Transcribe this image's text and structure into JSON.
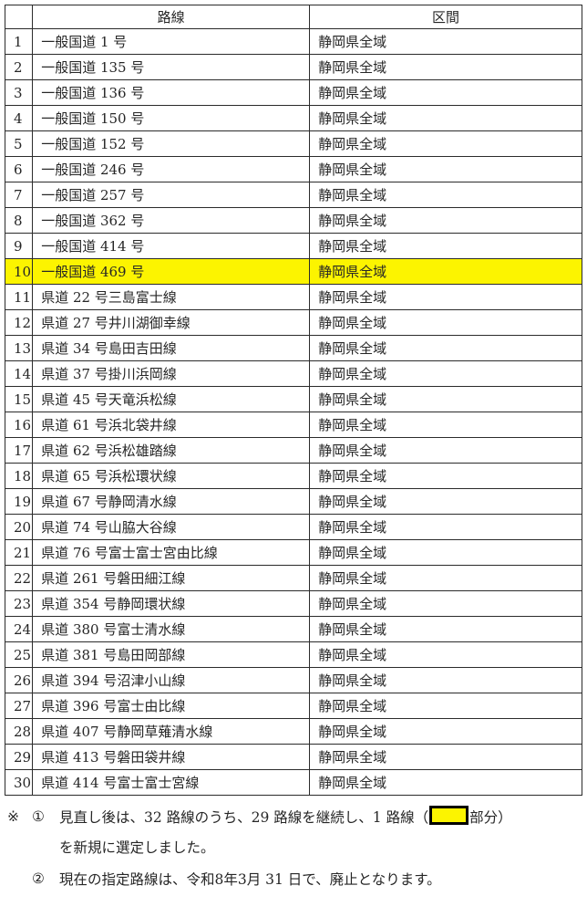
{
  "table": {
    "headers": {
      "no": "",
      "route": "路線",
      "section": "区間"
    },
    "rows": [
      {
        "no": "1",
        "route": "一般国道 1 号",
        "section": "静岡県全域",
        "highlight": false
      },
      {
        "no": "2",
        "route": "一般国道 135 号",
        "section": "静岡県全域",
        "highlight": false
      },
      {
        "no": "3",
        "route": "一般国道 136 号",
        "section": "静岡県全域",
        "highlight": false
      },
      {
        "no": "4",
        "route": "一般国道 150 号",
        "section": "静岡県全域",
        "highlight": false
      },
      {
        "no": "5",
        "route": "一般国道 152 号",
        "section": "静岡県全域",
        "highlight": false
      },
      {
        "no": "6",
        "route": "一般国道 246 号",
        "section": "静岡県全域",
        "highlight": false
      },
      {
        "no": "7",
        "route": "一般国道 257 号",
        "section": "静岡県全域",
        "highlight": false
      },
      {
        "no": "8",
        "route": "一般国道 362 号",
        "section": "静岡県全域",
        "highlight": false
      },
      {
        "no": "9",
        "route": "一般国道 414 号",
        "section": "静岡県全域",
        "highlight": false
      },
      {
        "no": "10",
        "route": "一般国道 469 号",
        "section": "静岡県全域",
        "highlight": true
      },
      {
        "no": "11",
        "route": "県道 22 号三島富士線",
        "section": "静岡県全域",
        "highlight": false
      },
      {
        "no": "12",
        "route": "県道 27 号井川湖御幸線",
        "section": "静岡県全域",
        "highlight": false
      },
      {
        "no": "13",
        "route": "県道 34 号島田吉田線",
        "section": "静岡県全域",
        "highlight": false
      },
      {
        "no": "14",
        "route": "県道 37 号掛川浜岡線",
        "section": "静岡県全域",
        "highlight": false
      },
      {
        "no": "15",
        "route": "県道 45 号天竜浜松線",
        "section": "静岡県全域",
        "highlight": false
      },
      {
        "no": "16",
        "route": "県道 61 号浜北袋井線",
        "section": "静岡県全域",
        "highlight": false
      },
      {
        "no": "17",
        "route": "県道 62 号浜松雄踏線",
        "section": "静岡県全域",
        "highlight": false
      },
      {
        "no": "18",
        "route": "県道 65 号浜松環状線",
        "section": "静岡県全域",
        "highlight": false
      },
      {
        "no": "19",
        "route": "県道 67 号静岡清水線",
        "section": "静岡県全域",
        "highlight": false
      },
      {
        "no": "20",
        "route": "県道 74 号山脇大谷線",
        "section": "静岡県全域",
        "highlight": false
      },
      {
        "no": "21",
        "route": "県道 76 号富士富士宮由比線",
        "section": "静岡県全域",
        "highlight": false
      },
      {
        "no": "22",
        "route": "県道 261 号磐田細江線",
        "section": "静岡県全域",
        "highlight": false
      },
      {
        "no": "23",
        "route": "県道 354 号静岡環状線",
        "section": "静岡県全域",
        "highlight": false
      },
      {
        "no": "24",
        "route": "県道 380 号富士清水線",
        "section": "静岡県全域",
        "highlight": false
      },
      {
        "no": "25",
        "route": "県道 381 号島田岡部線",
        "section": "静岡県全域",
        "highlight": false
      },
      {
        "no": "26",
        "route": "県道 394 号沼津小山線",
        "section": "静岡県全域",
        "highlight": false
      },
      {
        "no": "27",
        "route": "県道 396 号富士由比線",
        "section": "静岡県全域",
        "highlight": false
      },
      {
        "no": "28",
        "route": "県道 407 号静岡草薙清水線",
        "section": "静岡県全域",
        "highlight": false
      },
      {
        "no": "29",
        "route": "県道 413 号磐田袋井線",
        "section": "静岡県全域",
        "highlight": false
      },
      {
        "no": "30",
        "route": "県道 414 号富士富士宮線",
        "section": "静岡県全域",
        "highlight": false
      }
    ]
  },
  "notes": {
    "marker": "※",
    "item1": {
      "num": "①",
      "text_before": "見直し後は、32 路線のうち、29 路線を継続し、1 路線（",
      "text_after": "部分）",
      "text_line2": "を新規に選定しました。"
    },
    "item2": {
      "num": "②",
      "text": "現在の指定路線は、令和8年3月 31 日で、廃止となります。"
    }
  },
  "colors": {
    "highlight": "#fcf400",
    "border": "#2b2b2b",
    "text": "#262626"
  }
}
